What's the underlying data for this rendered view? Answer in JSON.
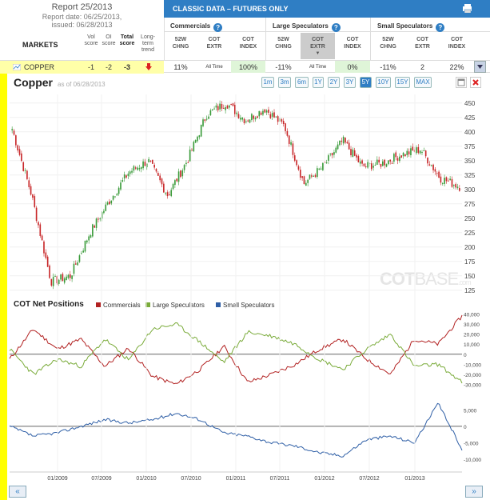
{
  "report": {
    "title": "Report 25/2013",
    "date": "Report date: 06/25/2013,",
    "issued": "issued: 06/28/2013"
  },
  "table": {
    "markets_label": "MARKETS",
    "col_vol": [
      "Vol",
      "score"
    ],
    "col_oi": [
      "OI",
      "score"
    ],
    "col_total": [
      "Total",
      "score"
    ],
    "col_trend": [
      "Long-",
      "term",
      "trend"
    ],
    "classic_label": "CLASSIC DATA – FUTURES ONLY",
    "groups": [
      "Commercials",
      "Large Speculators",
      "Small Speculators"
    ],
    "sub_52w": [
      "52W",
      "CHNG"
    ],
    "sub_extr": [
      "COT",
      "EXTR"
    ],
    "sub_index": [
      "COT",
      "INDEX"
    ],
    "help_glyph": "?"
  },
  "row": {
    "market": "COPPER",
    "vol": "-1",
    "oi": "-2",
    "total": "-3",
    "com_52w": "11%",
    "com_extr": "All Time",
    "com_index": "100%",
    "ls_52w": "-11%",
    "ls_extr": "All Time",
    "ls_index": "0%",
    "ss_52w": "-11%",
    "ss_extr": "2",
    "ss_index": "22%"
  },
  "chart": {
    "title": "Copper",
    "asof": "as of 06/28/2013",
    "ranges": [
      "1m",
      "3m",
      "6m",
      "1Y",
      "2Y",
      "3Y",
      "5Y",
      "10Y",
      "15Y",
      "MAX"
    ],
    "active_range": "5Y",
    "watermark": "COT",
    "watermark2": "BASE",
    "watermark3": ".com",
    "cot_title": "COT Net Positions",
    "x_labels": [
      "01/2009",
      "07/2009",
      "01/2010",
      "07/2010",
      "01/2011",
      "07/2011",
      "01/2012",
      "07/2012",
      "01/2013"
    ]
  },
  "pager": {
    "prev": "«",
    "next": "»"
  },
  "chart_data": [
    {
      "type": "candlestick",
      "title": "Copper",
      "y_ticks": [
        125,
        150,
        175,
        200,
        225,
        250,
        275,
        300,
        325,
        350,
        375,
        400,
        425,
        450
      ],
      "ylim": [
        115,
        465
      ],
      "x": [
        "2008-07",
        "2008-10",
        "2008-12",
        "2009-03",
        "2009-06",
        "2009-09",
        "2009-12",
        "2010-03",
        "2010-06",
        "2010-09",
        "2010-12",
        "2011-02",
        "2011-04",
        "2011-06",
        "2011-08",
        "2011-10",
        "2011-12",
        "2012-02",
        "2012-05",
        "2012-08",
        "2012-11",
        "2013-02",
        "2013-04",
        "2013-06"
      ],
      "values": [
        405,
        290,
        140,
        150,
        225,
        280,
        330,
        350,
        290,
        350,
        430,
        450,
        420,
        440,
        410,
        310,
        340,
        385,
        340,
        345,
        360,
        370,
        320,
        305
      ],
      "colors": {
        "up": "#3a9b3a",
        "down": "#c8282a"
      }
    },
    {
      "type": "line",
      "title": "COT Net Positions",
      "legend_position": "top",
      "right_ticks_upper": [
        40000,
        30000,
        20000,
        10000,
        0,
        -10000,
        -20000,
        -30000
      ],
      "right_ticks_lower": [
        5000,
        0,
        -5000,
        -10000
      ],
      "series": [
        {
          "name": "Commercials",
          "color": "#b22222",
          "values": [
            -5000,
            25000,
            5000,
            15000,
            -12000,
            6000,
            -22000,
            -30000,
            -15000,
            8000,
            -28000,
            -20000,
            -10000,
            5000,
            15000,
            -5000,
            -20000,
            15000,
            10000,
            38000
          ]
        },
        {
          "name": "Large Speculators",
          "color": "#7aab3a",
          "values": [
            5000,
            -20000,
            -5000,
            -12000,
            15000,
            -6000,
            25000,
            30000,
            12000,
            -8000,
            22000,
            18000,
            10000,
            -5000,
            -15000,
            5000,
            20000,
            -12000,
            -10000,
            -28000
          ]
        },
        {
          "name": "Small Speculators",
          "color": "#2f5fa6",
          "values": [
            0,
            -3000,
            -2000,
            0,
            2000,
            1000,
            2000,
            4000,
            2000,
            -2000,
            -3000,
            -5000,
            -6000,
            -8000,
            -9000,
            -4000,
            -3000,
            -5000,
            7000,
            -7000
          ]
        }
      ]
    }
  ]
}
